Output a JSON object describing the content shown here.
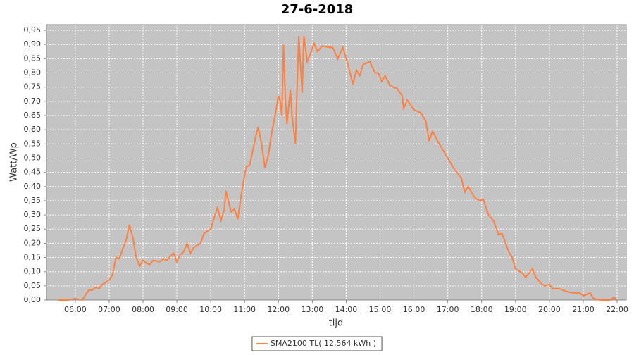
{
  "chart_data": {
    "type": "line",
    "title": "27-6-2018",
    "x_label": "tijd",
    "y_label": "Watt/Wp",
    "grid": true,
    "legend": "bottom",
    "background": "#c4c4c4",
    "xlim": [
      5.15,
      22.27
    ],
    "ylim": [
      0,
      0.97
    ],
    "xticks": [
      {
        "value": 6,
        "label": "06:00"
      },
      {
        "value": 7,
        "label": "07:00"
      },
      {
        "value": 8,
        "label": "08:00"
      },
      {
        "value": 9,
        "label": "09:00"
      },
      {
        "value": 10,
        "label": "10:00"
      },
      {
        "value": 11,
        "label": "11:00"
      },
      {
        "value": 12,
        "label": "12:00"
      },
      {
        "value": 13,
        "label": "13:00"
      },
      {
        "value": 14,
        "label": "14:00"
      },
      {
        "value": 15,
        "label": "15:00"
      },
      {
        "value": 16,
        "label": "16:00"
      },
      {
        "value": 17,
        "label": "17:00"
      },
      {
        "value": 18,
        "label": "18:00"
      },
      {
        "value": 19,
        "label": "19:00"
      },
      {
        "value": 20,
        "label": "20:00"
      },
      {
        "value": 21,
        "label": "21:00"
      },
      {
        "value": 22,
        "label": "22:00"
      }
    ],
    "yticks": [
      {
        "value": 0,
        "label": "0,00"
      },
      {
        "value": 0.05,
        "label": "0,05"
      },
      {
        "value": 0.1,
        "label": "0,10"
      },
      {
        "value": 0.15,
        "label": "0,15"
      },
      {
        "value": 0.2,
        "label": "0,20"
      },
      {
        "value": 0.25,
        "label": "0,25"
      },
      {
        "value": 0.3,
        "label": "0,30"
      },
      {
        "value": 0.35,
        "label": "0,35"
      },
      {
        "value": 0.4,
        "label": "0,40"
      },
      {
        "value": 0.45,
        "label": "0,45"
      },
      {
        "value": 0.5,
        "label": "0,50"
      },
      {
        "value": 0.55,
        "label": "0,55"
      },
      {
        "value": 0.6,
        "label": "0,60"
      },
      {
        "value": 0.65,
        "label": "0,65"
      },
      {
        "value": 0.7,
        "label": "0,70"
      },
      {
        "value": 0.75,
        "label": "0,75"
      },
      {
        "value": 0.8,
        "label": "0,80"
      },
      {
        "value": 0.85,
        "label": "0,85"
      },
      {
        "value": 0.9,
        "label": "0,90"
      },
      {
        "value": 0.95,
        "label": "0,95"
      }
    ],
    "x": [
      5.5,
      5.8,
      6.0,
      6.2,
      6.4,
      6.5,
      6.6,
      6.7,
      6.8,
      7.0,
      7.1,
      7.2,
      7.3,
      7.4,
      7.5,
      7.6,
      7.7,
      7.8,
      7.9,
      8.0,
      8.1,
      8.2,
      8.3,
      8.5,
      8.6,
      8.7,
      8.9,
      9.0,
      9.1,
      9.2,
      9.3,
      9.4,
      9.5,
      9.7,
      9.8,
      10.0,
      10.1,
      10.2,
      10.3,
      10.4,
      10.45,
      10.6,
      10.7,
      10.8,
      10.9,
      11.0,
      11.05,
      11.15,
      11.3,
      11.4,
      11.5,
      11.6,
      11.7,
      11.8,
      11.9,
      12.0,
      12.05,
      12.1,
      12.15,
      12.2,
      12.25,
      12.35,
      12.4,
      12.5,
      12.55,
      12.6,
      12.7,
      12.75,
      12.85,
      12.95,
      13.05,
      13.15,
      13.3,
      13.5,
      13.6,
      13.75,
      13.9,
      14.05,
      14.2,
      14.3,
      14.4,
      14.5,
      14.7,
      14.85,
      14.95,
      15.05,
      15.15,
      15.3,
      15.5,
      15.65,
      15.7,
      15.8,
      16.0,
      16.2,
      16.35,
      16.45,
      16.55,
      16.7,
      16.9,
      17.0,
      17.2,
      17.4,
      17.5,
      17.6,
      17.8,
      17.95,
      18.05,
      18.2,
      18.35,
      18.5,
      18.6,
      18.8,
      18.9,
      19.0,
      19.2,
      19.3,
      19.5,
      19.6,
      19.75,
      19.85,
      20.0,
      20.1,
      20.3,
      20.5,
      20.7,
      20.9,
      21.0,
      21.2,
      21.3,
      21.5,
      21.8,
      21.9,
      22.0
    ],
    "series": [
      {
        "name": "SMA2100 TL( 12,564 kWh )",
        "color": "#ff8040",
        "values": [
          0,
          0,
          0.005,
          0,
          0.035,
          0.035,
          0.045,
          0.04,
          0.055,
          0.07,
          0.09,
          0.15,
          0.145,
          0.18,
          0.21,
          0.265,
          0.22,
          0.15,
          0.12,
          0.14,
          0.13,
          0.125,
          0.14,
          0.135,
          0.145,
          0.14,
          0.165,
          0.135,
          0.16,
          0.17,
          0.2,
          0.165,
          0.185,
          0.2,
          0.235,
          0.25,
          0.29,
          0.325,
          0.28,
          0.32,
          0.385,
          0.31,
          0.32,
          0.285,
          0.37,
          0.44,
          0.47,
          0.475,
          0.56,
          0.61,
          0.55,
          0.465,
          0.51,
          0.59,
          0.65,
          0.72,
          0.7,
          0.65,
          0.9,
          0.72,
          0.62,
          0.74,
          0.65,
          0.55,
          0.75,
          0.93,
          0.73,
          0.93,
          0.84,
          0.87,
          0.905,
          0.875,
          0.895,
          0.89,
          0.89,
          0.85,
          0.89,
          0.83,
          0.76,
          0.81,
          0.79,
          0.83,
          0.84,
          0.8,
          0.8,
          0.77,
          0.79,
          0.755,
          0.745,
          0.72,
          0.675,
          0.705,
          0.67,
          0.66,
          0.63,
          0.56,
          0.595,
          0.56,
          0.52,
          0.5,
          0.46,
          0.43,
          0.38,
          0.4,
          0.36,
          0.35,
          0.355,
          0.3,
          0.28,
          0.23,
          0.235,
          0.17,
          0.15,
          0.11,
          0.095,
          0.08,
          0.11,
          0.08,
          0.06,
          0.05,
          0.055,
          0.04,
          0.04,
          0.03,
          0.025,
          0.025,
          0.015,
          0.025,
          0.005,
          0,
          0,
          0.01,
          0
        ]
      }
    ]
  }
}
